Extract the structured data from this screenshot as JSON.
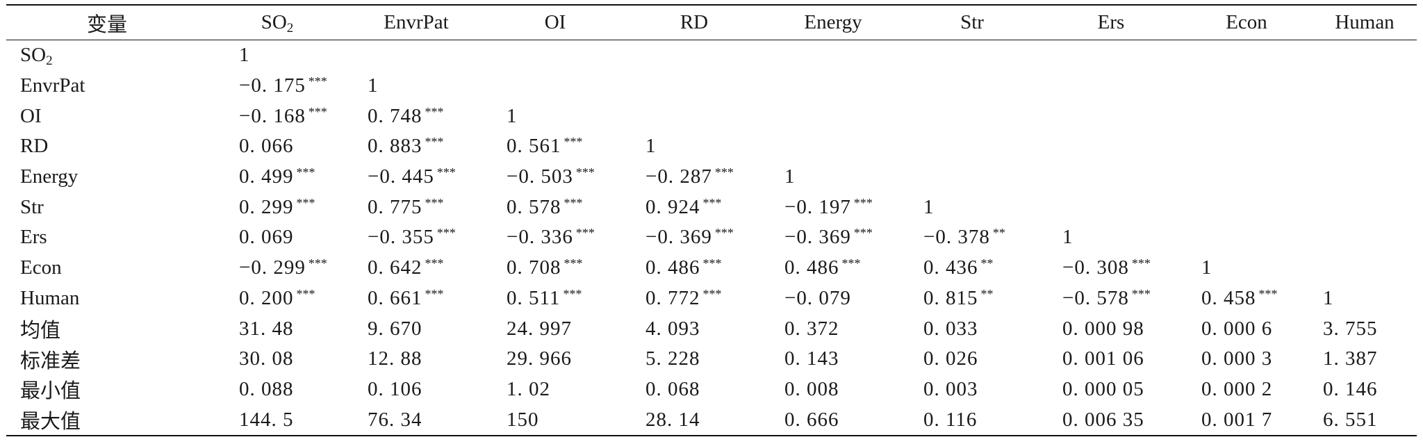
{
  "table": {
    "headers": [
      "变量",
      "SO",
      "EnvrPat",
      "OI",
      "RD",
      "Energy",
      "Str",
      "Ers",
      "Econ",
      "Human"
    ],
    "so2_subscript": "2",
    "rows": [
      {
        "label": "SO",
        "label_sub": "2",
        "cells": [
          [
            "1",
            ""
          ]
        ]
      },
      {
        "label": "EnvrPat",
        "cells": [
          [
            "−0. 175",
            "***"
          ],
          [
            "1",
            ""
          ]
        ]
      },
      {
        "label": "OI",
        "cells": [
          [
            "−0. 168",
            "***"
          ],
          [
            "0. 748",
            "***"
          ],
          [
            "1",
            ""
          ]
        ]
      },
      {
        "label": "RD",
        "cells": [
          [
            "0. 066",
            ""
          ],
          [
            "0. 883",
            "***"
          ],
          [
            "0. 561",
            "***"
          ],
          [
            "1",
            ""
          ]
        ]
      },
      {
        "label": "Energy",
        "cells": [
          [
            "0. 499",
            "***"
          ],
          [
            "−0. 445",
            "***"
          ],
          [
            "−0. 503",
            "***"
          ],
          [
            "−0. 287",
            "***"
          ],
          [
            "1",
            ""
          ]
        ]
      },
      {
        "label": "Str",
        "cells": [
          [
            "0. 299",
            "***"
          ],
          [
            "0. 775",
            "***"
          ],
          [
            "0. 578",
            "***"
          ],
          [
            "0. 924",
            "***"
          ],
          [
            "−0. 197",
            "***"
          ],
          [
            "1",
            ""
          ]
        ]
      },
      {
        "label": "Ers",
        "cells": [
          [
            "0. 069",
            ""
          ],
          [
            "−0. 355",
            "***"
          ],
          [
            "−0. 336",
            "***"
          ],
          [
            "−0. 369",
            "***"
          ],
          [
            "−0. 369",
            "***"
          ],
          [
            "−0. 378",
            "**"
          ],
          [
            "1",
            ""
          ]
        ]
      },
      {
        "label": "Econ",
        "cells": [
          [
            "−0. 299",
            "***"
          ],
          [
            "0. 642",
            "***"
          ],
          [
            "0. 708",
            "***"
          ],
          [
            "0. 486",
            "***"
          ],
          [
            "0. 486",
            "***"
          ],
          [
            "0. 436",
            "**"
          ],
          [
            "−0. 308",
            "***"
          ],
          [
            "1",
            ""
          ]
        ]
      },
      {
        "label": "Human",
        "cells": [
          [
            "0. 200",
            "***"
          ],
          [
            "0. 661",
            "***"
          ],
          [
            "0. 511",
            "***"
          ],
          [
            "0. 772",
            "***"
          ],
          [
            "−0. 079",
            ""
          ],
          [
            "0. 815",
            "**"
          ],
          [
            "−0. 578",
            "***"
          ],
          [
            "0. 458",
            "***"
          ],
          [
            "1",
            ""
          ]
        ]
      },
      {
        "label": "均值",
        "cells": [
          [
            "31. 48",
            ""
          ],
          [
            "9. 670",
            ""
          ],
          [
            "24. 997",
            ""
          ],
          [
            "4. 093",
            ""
          ],
          [
            "0. 372",
            ""
          ],
          [
            "0. 033",
            ""
          ],
          [
            "0. 000 98",
            ""
          ],
          [
            "0. 000 6",
            ""
          ],
          [
            "3. 755",
            ""
          ]
        ]
      },
      {
        "label": "标准差",
        "cells": [
          [
            "30. 08",
            ""
          ],
          [
            "12. 88",
            ""
          ],
          [
            "29. 966",
            ""
          ],
          [
            "5. 228",
            ""
          ],
          [
            "0. 143",
            ""
          ],
          [
            "0. 026",
            ""
          ],
          [
            "0. 001 06",
            ""
          ],
          [
            "0. 000 3",
            ""
          ],
          [
            "1. 387",
            ""
          ]
        ]
      },
      {
        "label": "最小值",
        "cells": [
          [
            "0. 088",
            ""
          ],
          [
            "0. 106",
            ""
          ],
          [
            "1. 02",
            ""
          ],
          [
            "0. 068",
            ""
          ],
          [
            "0. 008",
            ""
          ],
          [
            "0. 003",
            ""
          ],
          [
            "0. 000 05",
            ""
          ],
          [
            "0. 000 2",
            ""
          ],
          [
            "0. 146",
            ""
          ]
        ]
      },
      {
        "label": "最大值",
        "cells": [
          [
            "144. 5",
            ""
          ],
          [
            "76. 34",
            ""
          ],
          [
            "150",
            ""
          ],
          [
            "28. 14",
            ""
          ],
          [
            "0. 666",
            ""
          ],
          [
            "0. 116",
            ""
          ],
          [
            "0. 006 35",
            ""
          ],
          [
            "0. 001 7",
            ""
          ],
          [
            "6. 551",
            ""
          ]
        ]
      }
    ]
  }
}
